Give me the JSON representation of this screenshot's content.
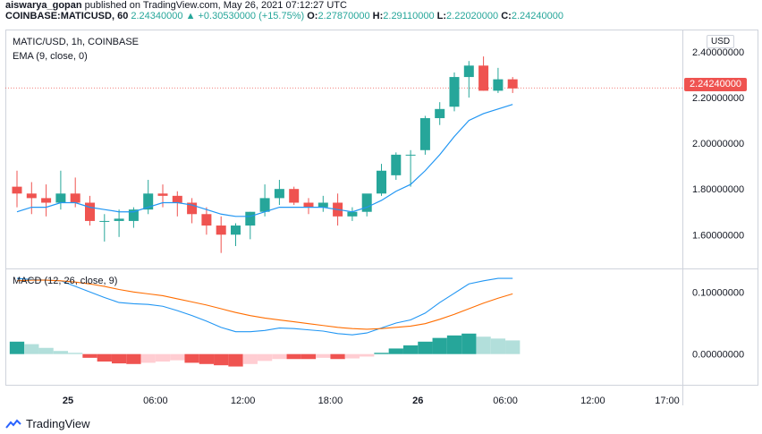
{
  "header": {
    "author": "aiswarya_gopan",
    "published_text": " published on TradingView.com, May 26, 2021 07:12:27 UTC",
    "symbol": "COINBASE:MATICUSD, 60",
    "last": "2.24340000",
    "change": "▲ +0.30530000 (+15.75%)",
    "o_label": "O:",
    "o_val": "2.27870000",
    "h_label": "H:",
    "h_val": "2.29110000",
    "l_label": "L:",
    "l_val": "2.22020000",
    "c_label": "C:",
    "c_val": "2.24240000"
  },
  "legend": {
    "main": "MATIC/USD, 1h, COINBASE",
    "ema": "EMA (9, close, 0)",
    "macd": "MACD (12, 26, close, 9)"
  },
  "currency": "USD",
  "current_price": "2.24240000",
  "footer": {
    "brand": "TradingView"
  },
  "colors": {
    "up": "#26a69a",
    "down": "#ef5350",
    "ema": "#2196f3",
    "macd": "#2196f3",
    "signal": "#ff6d00"
  },
  "chart_data": [
    {
      "type": "candlestick",
      "title": "MATIC/USD, 1h, COINBASE",
      "y_ticks": [
        "2.40000000",
        "2.20000000",
        "2.00000000",
        "1.80000000",
        "1.60000000"
      ],
      "y_tick_values": [
        2.4,
        2.2,
        2.0,
        1.8,
        1.6
      ],
      "ylim": [
        1.46,
        2.49
      ],
      "x_ticks": [
        "25",
        "06:00",
        "12:00",
        "18:00",
        "26",
        "06:00",
        "12:00",
        "17:00"
      ],
      "x_tick_index": [
        3.5,
        9.5,
        15.5,
        21.5,
        27.5,
        33.5,
        39.5,
        44.6
      ],
      "candles": [
        [
          1.81,
          1.88,
          1.72,
          1.78
        ],
        [
          1.78,
          1.83,
          1.69,
          1.76
        ],
        [
          1.76,
          1.82,
          1.68,
          1.74
        ],
        [
          1.74,
          1.88,
          1.71,
          1.78
        ],
        [
          1.78,
          1.85,
          1.72,
          1.74
        ],
        [
          1.74,
          1.77,
          1.64,
          1.66
        ],
        [
          1.66,
          1.69,
          1.57,
          1.66
        ],
        [
          1.66,
          1.71,
          1.59,
          1.67
        ],
        [
          1.66,
          1.72,
          1.63,
          1.71
        ],
        [
          1.71,
          1.84,
          1.69,
          1.78
        ],
        [
          1.78,
          1.82,
          1.72,
          1.77
        ],
        [
          1.77,
          1.79,
          1.68,
          1.74
        ],
        [
          1.74,
          1.76,
          1.65,
          1.69
        ],
        [
          1.69,
          1.72,
          1.6,
          1.64
        ],
        [
          1.64,
          1.68,
          1.52,
          1.6
        ],
        [
          1.6,
          1.65,
          1.55,
          1.64
        ],
        [
          1.64,
          1.7,
          1.58,
          1.7
        ],
        [
          1.7,
          1.82,
          1.68,
          1.76
        ],
        [
          1.76,
          1.84,
          1.73,
          1.8
        ],
        [
          1.8,
          1.81,
          1.73,
          1.74
        ],
        [
          1.74,
          1.76,
          1.69,
          1.72
        ],
        [
          1.72,
          1.77,
          1.7,
          1.74
        ],
        [
          1.74,
          1.78,
          1.64,
          1.68
        ],
        [
          1.68,
          1.72,
          1.66,
          1.7
        ],
        [
          1.7,
          1.77,
          1.68,
          1.78
        ],
        [
          1.78,
          1.91,
          1.77,
          1.88
        ],
        [
          1.86,
          1.96,
          1.84,
          1.95
        ],
        [
          1.95,
          1.97,
          1.81,
          1.95
        ],
        [
          1.97,
          2.12,
          1.95,
          2.11
        ],
        [
          2.11,
          2.18,
          2.08,
          2.15
        ],
        [
          2.16,
          2.31,
          2.14,
          2.29
        ],
        [
          2.29,
          2.36,
          2.2,
          2.34
        ],
        [
          2.34,
          2.38,
          2.23,
          2.23
        ],
        [
          2.23,
          2.33,
          2.22,
          2.28
        ],
        [
          2.28,
          2.29,
          2.22,
          2.24
        ]
      ],
      "ema": [
        1.7,
        1.72,
        1.72,
        1.74,
        1.74,
        1.72,
        1.71,
        1.7,
        1.7,
        1.72,
        1.74,
        1.74,
        1.73,
        1.71,
        1.69,
        1.68,
        1.68,
        1.7,
        1.72,
        1.72,
        1.72,
        1.72,
        1.71,
        1.7,
        1.72,
        1.75,
        1.79,
        1.82,
        1.88,
        1.95,
        2.03,
        2.1,
        2.13,
        2.15,
        2.17
      ],
      "current_price": 2.2424
    },
    {
      "type": "bar+line",
      "title": "MACD (12, 26, close, 9)",
      "y_ticks": [
        "0.10000000",
        "0.00000000"
      ],
      "y_tick_values": [
        0.1,
        0.0
      ],
      "ylim": [
        -0.048,
        0.135
      ],
      "histogram": [
        0.02,
        0.016,
        0.01,
        0.005,
        0.002,
        -0.006,
        -0.012,
        -0.015,
        -0.016,
        -0.014,
        -0.012,
        -0.01,
        -0.014,
        -0.016,
        -0.018,
        -0.02,
        -0.016,
        -0.011,
        -0.008,
        -0.008,
        -0.008,
        -0.006,
        -0.008,
        -0.007,
        -0.004,
        0.002,
        0.009,
        0.014,
        0.02,
        0.026,
        0.03,
        0.033,
        0.028,
        0.025,
        0.022
      ],
      "macd": [
        0.122,
        0.12,
        0.119,
        0.118,
        0.109,
        0.1,
        0.091,
        0.083,
        0.081,
        0.08,
        0.077,
        0.07,
        0.062,
        0.053,
        0.043,
        0.036,
        0.036,
        0.038,
        0.042,
        0.041,
        0.039,
        0.037,
        0.033,
        0.031,
        0.034,
        0.042,
        0.05,
        0.055,
        0.066,
        0.083,
        0.098,
        0.113,
        0.118,
        0.122,
        0.122
      ],
      "signal": [
        0.118,
        0.119,
        0.119,
        0.118,
        0.116,
        0.113,
        0.109,
        0.104,
        0.1,
        0.097,
        0.094,
        0.089,
        0.084,
        0.079,
        0.073,
        0.067,
        0.062,
        0.058,
        0.055,
        0.052,
        0.049,
        0.046,
        0.043,
        0.041,
        0.04,
        0.041,
        0.043,
        0.045,
        0.049,
        0.056,
        0.064,
        0.073,
        0.082,
        0.09,
        0.097
      ]
    }
  ]
}
